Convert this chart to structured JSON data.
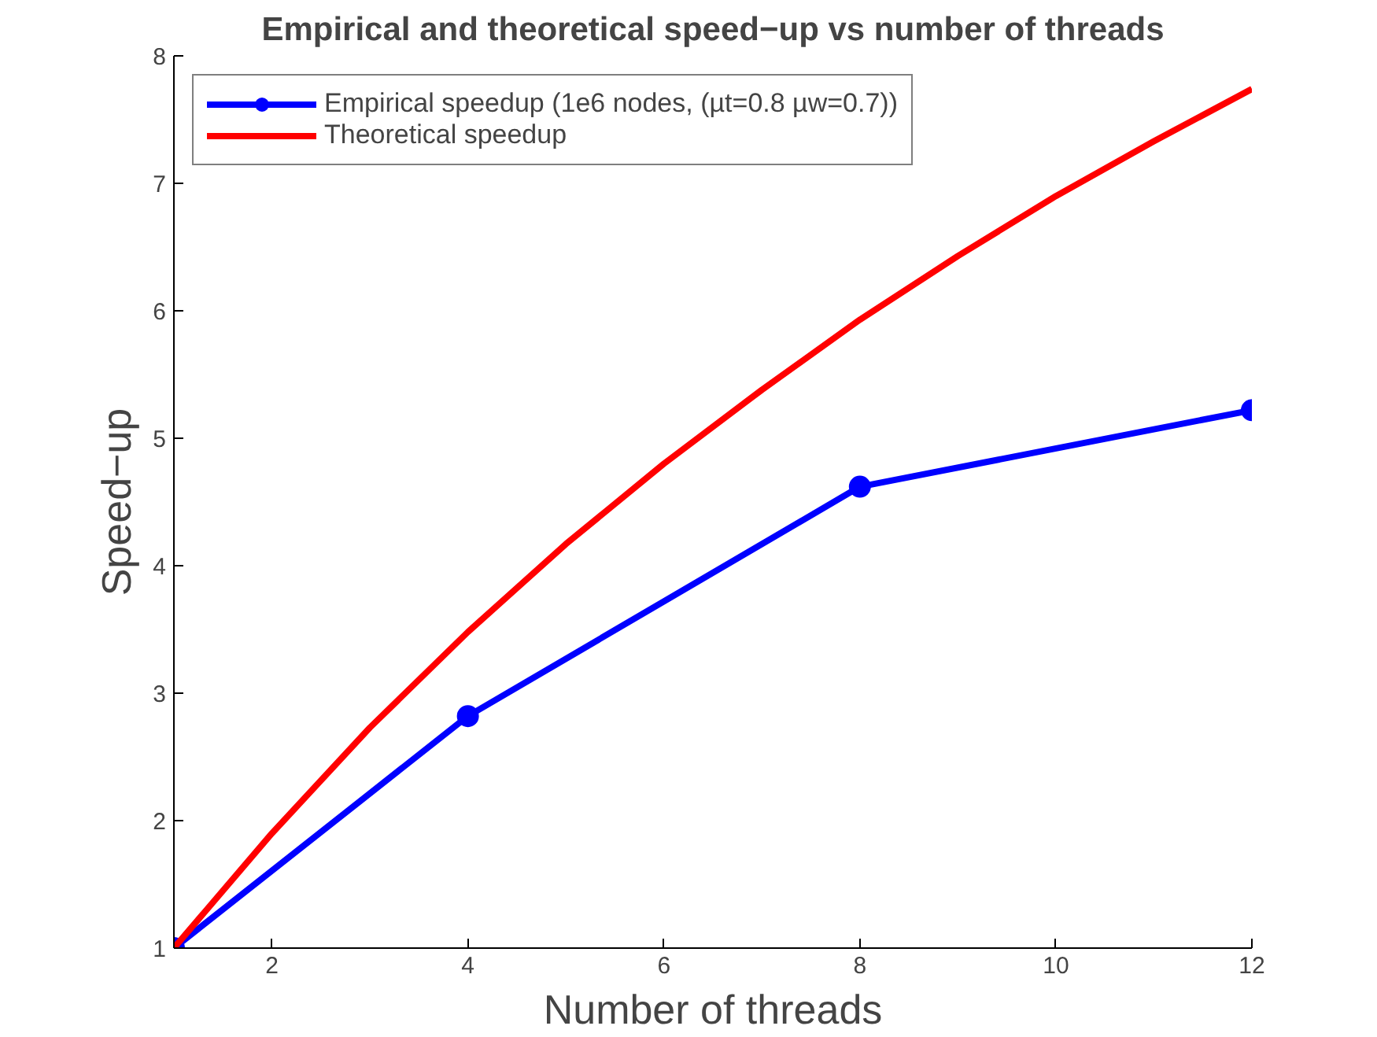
{
  "chart_data": {
    "type": "line",
    "title": "Empirical and theoretical speed−up vs number of threads",
    "xlabel": "Number of threads",
    "ylabel": "Speed−up",
    "xlim": [
      1,
      12
    ],
    "ylim": [
      1,
      8
    ],
    "xticks": [
      2,
      4,
      6,
      8,
      10,
      12
    ],
    "yticks": [
      1,
      2,
      3,
      4,
      5,
      6,
      7,
      8
    ],
    "grid": false,
    "legend": "top left",
    "line_style": "solid",
    "series": [
      {
        "name": "Empirical speedup (1e6 nodes, (µt=0.8 µw=0.7))",
        "color": "#0000ff",
        "marker": "circle",
        "x": [
          1,
          4,
          8,
          12
        ],
        "values": [
          1,
          2.82,
          4.62,
          5.22
        ]
      },
      {
        "name": "Theoretical speedup",
        "color": "#ff0000",
        "marker": "none",
        "x": [
          1,
          2,
          3,
          4,
          5,
          6,
          7,
          8,
          9,
          10,
          11,
          12
        ],
        "values": [
          1,
          1.9,
          2.73,
          3.48,
          4.17,
          4.8,
          5.38,
          5.93,
          6.43,
          6.9,
          7.33,
          7.74
        ]
      }
    ]
  }
}
